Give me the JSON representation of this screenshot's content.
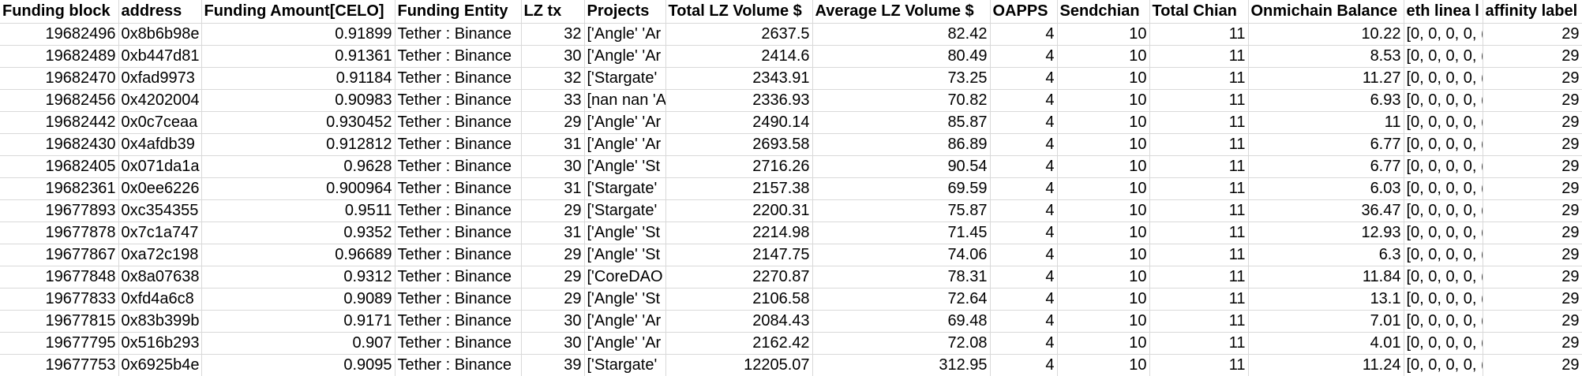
{
  "headers": [
    "Funding block",
    "address",
    "Funding Amount[CELO]",
    "Funding Entity",
    "LZ tx",
    "Projects",
    "Total LZ Volume $",
    "Average LZ Volume $",
    "OAPPS",
    "Sendchian",
    "Total Chian",
    "Onmichain Balance",
    "eth linea l",
    "affinity label"
  ],
  "rows": [
    [
      "19682496",
      "0x8b6b98e",
      "0.91899",
      "Tether : Binance",
      "32",
      "['Angle' 'Ar",
      "2637.5",
      "82.42",
      "4",
      "10",
      "11",
      "10.22",
      "[0, 0, 0, 0, (",
      "29"
    ],
    [
      "19682489",
      "0xb447d81",
      "0.91361",
      "Tether : Binance",
      "30",
      "['Angle' 'Ar",
      "2414.6",
      "80.49",
      "4",
      "10",
      "11",
      "8.53",
      "[0, 0, 0, 0, (",
      "29"
    ],
    [
      "19682470",
      "0xfad9973",
      "0.91184",
      "Tether : Binance",
      "32",
      "['Stargate'",
      "2343.91",
      "73.25",
      "4",
      "10",
      "11",
      "11.27",
      "[0, 0, 0, 0, (",
      "29"
    ],
    [
      "19682456",
      "0x4202004",
      "0.90983",
      "Tether : Binance",
      "33",
      "[nan nan 'A",
      "2336.93",
      "70.82",
      "4",
      "10",
      "11",
      "6.93",
      "[0, 0, 0, 0, (",
      "29"
    ],
    [
      "19682442",
      "0x0c7ceaa",
      "0.930452",
      "Tether : Binance",
      "29",
      "['Angle' 'Ar",
      "2490.14",
      "85.87",
      "4",
      "10",
      "11",
      "11",
      "[0, 0, 0, 0, (",
      "29"
    ],
    [
      "19682430",
      "0x4afdb39",
      "0.912812",
      "Tether : Binance",
      "31",
      "['Angle' 'Ar",
      "2693.58",
      "86.89",
      "4",
      "10",
      "11",
      "6.77",
      "[0, 0, 0, 0, (",
      "29"
    ],
    [
      "19682405",
      "0x071da1a",
      "0.9628",
      "Tether : Binance",
      "30",
      "['Angle' 'St",
      "2716.26",
      "90.54",
      "4",
      "10",
      "11",
      "6.77",
      "[0, 0, 0, 0, (",
      "29"
    ],
    [
      "19682361",
      "0x0ee6226",
      "0.900964",
      "Tether : Binance",
      "31",
      "['Stargate'",
      "2157.38",
      "69.59",
      "4",
      "10",
      "11",
      "6.03",
      "[0, 0, 0, 0, (",
      "29"
    ],
    [
      "19677893",
      "0xc354355",
      "0.9511",
      "Tether : Binance",
      "29",
      "['Stargate'",
      "2200.31",
      "75.87",
      "4",
      "10",
      "11",
      "36.47",
      "[0, 0, 0, 0, (",
      "29"
    ],
    [
      "19677878",
      "0x7c1a747",
      "0.9352",
      "Tether : Binance",
      "31",
      "['Angle' 'St",
      "2214.98",
      "71.45",
      "4",
      "10",
      "11",
      "12.93",
      "[0, 0, 0, 0, (",
      "29"
    ],
    [
      "19677867",
      "0xa72c198",
      "0.96689",
      "Tether : Binance",
      "29",
      "['Angle' 'St",
      "2147.75",
      "74.06",
      "4",
      "10",
      "11",
      "6.3",
      "[0, 0, 0, 0, (",
      "29"
    ],
    [
      "19677848",
      "0x8a07638",
      "0.9312",
      "Tether : Binance",
      "29",
      "['CoreDAO",
      "2270.87",
      "78.31",
      "4",
      "10",
      "11",
      "11.84",
      "[0, 0, 0, 0, (",
      "29"
    ],
    [
      "19677833",
      "0xfd4a6c8",
      "0.9089",
      "Tether : Binance",
      "29",
      "['Angle' 'St",
      "2106.58",
      "72.64",
      "4",
      "10",
      "11",
      "13.1",
      "[0, 0, 0, 0, (",
      "29"
    ],
    [
      "19677815",
      "0x83b399b",
      "0.9171",
      "Tether : Binance",
      "30",
      "['Angle' 'Ar",
      "2084.43",
      "69.48",
      "4",
      "10",
      "11",
      "7.01",
      "[0, 0, 0, 0, (",
      "29"
    ],
    [
      "19677795",
      "0x516b293",
      "0.907",
      "Tether : Binance",
      "30",
      "['Angle' 'Ar",
      "2162.42",
      "72.08",
      "4",
      "10",
      "11",
      "4.01",
      "[0, 0, 0, 0, (",
      "29"
    ],
    [
      "19677753",
      "0x6925b4e",
      "0.9095",
      "Tether : Binance",
      "39",
      "['Stargate'",
      "12205.07",
      "312.95",
      "4",
      "10",
      "11",
      "11.24",
      "[0, 0, 0, 0, (",
      "29"
    ]
  ]
}
